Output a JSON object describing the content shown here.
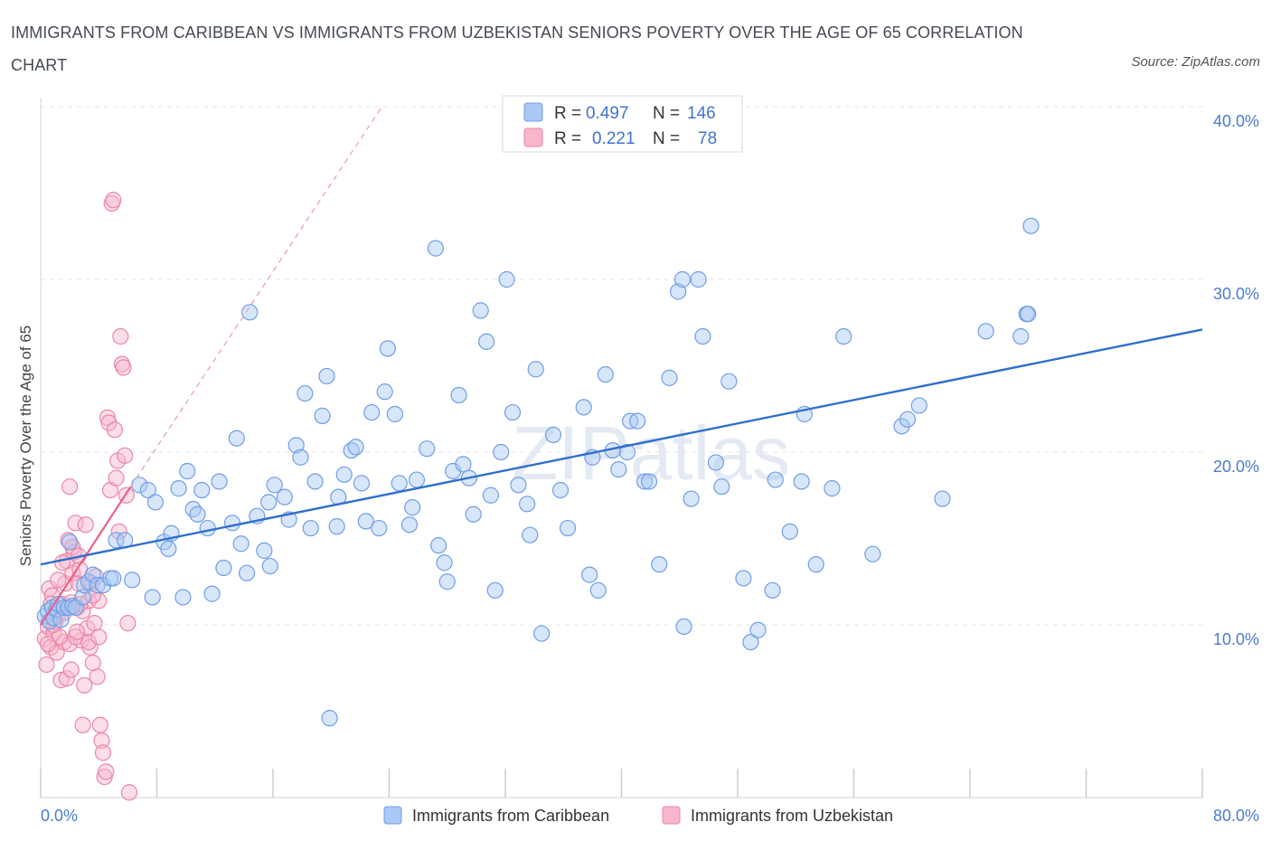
{
  "title": "IMMIGRANTS FROM CARIBBEAN VS IMMIGRANTS FROM UZBEKISTAN SENIORS POVERTY OVER THE AGE OF 65 CORRELATION CHART",
  "source": "Source: ZipAtlas.com",
  "watermark": "ZIPatlas",
  "colors": {
    "blue_fill": "#a9c8f5",
    "blue_stroke": "#6f9ee6",
    "blue_line": "#2f6fce",
    "pink_fill": "#f7b6cb",
    "pink_stroke": "#ec86a6",
    "pink_line": "#e8608b",
    "tick_text": "#4a7bd0",
    "grid": "#e3e6ea"
  },
  "stats": [
    {
      "r_label": "R =",
      "r": "0.497",
      "n_label": "N =",
      "n": "146"
    },
    {
      "r_label": "R =",
      "r": "0.221",
      "n_label": "N =",
      "n": "78"
    }
  ],
  "chart_data": {
    "type": "scatter",
    "title": "IMMIGRANTS FROM CARIBBEAN VS IMMIGRANTS FROM UZBEKISTAN SENIORS POVERTY OVER THE AGE OF 65 CORRELATION CHART",
    "xlabel": "",
    "ylabel": "Seniors Poverty Over the Age of 65",
    "xlim": [
      0,
      80
    ],
    "ylim": [
      0,
      40
    ],
    "x_tick_labels": [
      "0.0%",
      "80.0%"
    ],
    "y_ticks": [
      10,
      20,
      30,
      40
    ],
    "y_tick_labels": [
      "10.0%",
      "20.0%",
      "30.0%",
      "40.0%"
    ],
    "grid": true,
    "legend_position": "bottom-center",
    "series": [
      {
        "name": "Immigrants from Caribbean",
        "color": "blue",
        "r": 0.497,
        "n": 146,
        "trend": {
          "x0": 0,
          "y0": 13.5,
          "x1": 80,
          "y1": 27.1
        },
        "points": [
          [
            0.3,
            10.5
          ],
          [
            0.5,
            10.8
          ],
          [
            0.6,
            10.2
          ],
          [
            0.8,
            11.0
          ],
          [
            0.9,
            10.4
          ],
          [
            1.1,
            10.9
          ],
          [
            1.2,
            11.2
          ],
          [
            1.4,
            10.3
          ],
          [
            1.6,
            11.0
          ],
          [
            1.9,
            11.0
          ],
          [
            2.2,
            11.1
          ],
          [
            2.4,
            11.0
          ],
          [
            2.0,
            14.8
          ],
          [
            2.9,
            11.6
          ],
          [
            3.0,
            12.3
          ],
          [
            3.3,
            12.5
          ],
          [
            3.6,
            12.9
          ],
          [
            3.9,
            12.3
          ],
          [
            4.3,
            12.3
          ],
          [
            4.8,
            12.7
          ],
          [
            5.0,
            12.7
          ],
          [
            5.2,
            14.9
          ],
          [
            5.8,
            14.9
          ],
          [
            6.3,
            12.6
          ],
          [
            6.8,
            18.1
          ],
          [
            7.4,
            17.8
          ],
          [
            7.7,
            11.6
          ],
          [
            7.9,
            17.1
          ],
          [
            8.5,
            14.8
          ],
          [
            8.8,
            14.4
          ],
          [
            9.0,
            15.3
          ],
          [
            9.5,
            17.9
          ],
          [
            9.8,
            11.6
          ],
          [
            10.1,
            18.9
          ],
          [
            10.5,
            16.7
          ],
          [
            10.8,
            16.4
          ],
          [
            11.1,
            17.8
          ],
          [
            11.5,
            15.6
          ],
          [
            11.8,
            11.8
          ],
          [
            12.3,
            18.3
          ],
          [
            12.6,
            13.3
          ],
          [
            13.2,
            15.9
          ],
          [
            13.5,
            20.8
          ],
          [
            13.8,
            14.7
          ],
          [
            14.2,
            13.0
          ],
          [
            14.4,
            28.1
          ],
          [
            14.9,
            16.3
          ],
          [
            15.4,
            14.3
          ],
          [
            15.7,
            17.1
          ],
          [
            15.8,
            13.4
          ],
          [
            16.1,
            18.1
          ],
          [
            16.8,
            17.4
          ],
          [
            17.1,
            16.1
          ],
          [
            17.6,
            20.4
          ],
          [
            17.9,
            19.7
          ],
          [
            18.2,
            23.4
          ],
          [
            18.6,
            15.6
          ],
          [
            18.9,
            18.3
          ],
          [
            19.4,
            22.1
          ],
          [
            19.7,
            24.4
          ],
          [
            19.9,
            4.6
          ],
          [
            20.5,
            17.4
          ],
          [
            20.4,
            15.7
          ],
          [
            20.9,
            18.7
          ],
          [
            21.4,
            20.1
          ],
          [
            21.7,
            20.3
          ],
          [
            22.1,
            18.2
          ],
          [
            22.4,
            16.0
          ],
          [
            22.8,
            22.3
          ],
          [
            23.3,
            15.6
          ],
          [
            23.7,
            23.5
          ],
          [
            23.9,
            26.0
          ],
          [
            24.4,
            22.2
          ],
          [
            24.7,
            18.2
          ],
          [
            25.4,
            15.8
          ],
          [
            25.6,
            16.8
          ],
          [
            25.9,
            18.4
          ],
          [
            26.6,
            20.2
          ],
          [
            27.2,
            31.8
          ],
          [
            27.4,
            14.6
          ],
          [
            27.8,
            13.6
          ],
          [
            28.0,
            12.5
          ],
          [
            28.4,
            18.9
          ],
          [
            28.8,
            23.3
          ],
          [
            29.1,
            19.3
          ],
          [
            29.5,
            18.5
          ],
          [
            29.8,
            16.4
          ],
          [
            30.3,
            28.2
          ],
          [
            30.7,
            26.4
          ],
          [
            31.0,
            17.5
          ],
          [
            31.3,
            12.0
          ],
          [
            31.7,
            20.0
          ],
          [
            32.1,
            30.0
          ],
          [
            32.5,
            22.3
          ],
          [
            32.9,
            18.1
          ],
          [
            33.5,
            17.0
          ],
          [
            33.7,
            15.2
          ],
          [
            34.1,
            24.8
          ],
          [
            34.5,
            9.5
          ],
          [
            35.3,
            21.0
          ],
          [
            35.8,
            17.8
          ],
          [
            36.3,
            15.6
          ],
          [
            37.4,
            22.6
          ],
          [
            37.8,
            12.9
          ],
          [
            38.0,
            19.7
          ],
          [
            38.4,
            12.0
          ],
          [
            38.9,
            24.5
          ],
          [
            39.4,
            20.1
          ],
          [
            39.8,
            19.0
          ],
          [
            40.4,
            20.0
          ],
          [
            40.6,
            21.8
          ],
          [
            41.1,
            21.8
          ],
          [
            41.6,
            18.3
          ],
          [
            41.9,
            18.3
          ],
          [
            42.6,
            13.5
          ],
          [
            43.3,
            24.3
          ],
          [
            43.9,
            29.3
          ],
          [
            44.2,
            30.0
          ],
          [
            44.3,
            9.9
          ],
          [
            44.8,
            17.3
          ],
          [
            45.3,
            30.0
          ],
          [
            45.6,
            26.7
          ],
          [
            46.5,
            19.4
          ],
          [
            46.9,
            18.0
          ],
          [
            47.4,
            24.1
          ],
          [
            48.4,
            12.7
          ],
          [
            48.9,
            9.0
          ],
          [
            49.4,
            9.7
          ],
          [
            50.4,
            12.0
          ],
          [
            50.6,
            18.4
          ],
          [
            51.6,
            15.4
          ],
          [
            52.4,
            18.3
          ],
          [
            52.6,
            22.2
          ],
          [
            53.4,
            13.5
          ],
          [
            54.5,
            17.9
          ],
          [
            55.3,
            26.7
          ],
          [
            57.3,
            14.1
          ],
          [
            59.3,
            21.5
          ],
          [
            59.7,
            21.9
          ],
          [
            60.5,
            22.7
          ],
          [
            62.1,
            17.3
          ],
          [
            65.1,
            27.0
          ],
          [
            67.5,
            26.7
          ],
          [
            67.9,
            28.0
          ],
          [
            68.0,
            28.0
          ],
          [
            68.2,
            33.1
          ]
        ]
      },
      {
        "name": "Immigrants from Uzbekistan",
        "color": "pink",
        "r": 0.221,
        "n": 78,
        "trend": {
          "x0": 0,
          "y0": 10.0,
          "x1": 6.2,
          "y1": 18.0
        },
        "trend_extended": {
          "x0": 6.2,
          "y0": 18.0,
          "x1": 23.5,
          "y1": 40.0
        },
        "points": [
          [
            0.3,
            9.2
          ],
          [
            0.4,
            7.7
          ],
          [
            0.5,
            9.9
          ],
          [
            0.6,
            12.1
          ],
          [
            0.7,
            8.7
          ],
          [
            0.8,
            11.7
          ],
          [
            0.9,
            9.5
          ],
          [
            1.0,
            10.2
          ],
          [
            1.1,
            8.4
          ],
          [
            1.2,
            10.6
          ],
          [
            1.4,
            6.8
          ],
          [
            1.5,
            11.2
          ],
          [
            1.6,
            9.0
          ],
          [
            1.7,
            12.4
          ],
          [
            1.8,
            13.7
          ],
          [
            1.9,
            14.9
          ],
          [
            2.0,
            8.9
          ],
          [
            2.1,
            11.3
          ],
          [
            2.2,
            13.0
          ],
          [
            2.3,
            14.2
          ],
          [
            2.4,
            15.9
          ],
          [
            2.5,
            11.0
          ],
          [
            2.6,
            12.4
          ],
          [
            2.7,
            13.2
          ],
          [
            2.8,
            9.1
          ],
          [
            2.9,
            10.8
          ],
          [
            3.0,
            6.5
          ],
          [
            3.1,
            15.8
          ],
          [
            3.2,
            9.8
          ],
          [
            3.3,
            11.4
          ],
          [
            3.4,
            8.7
          ],
          [
            3.6,
            7.8
          ],
          [
            3.7,
            10.1
          ],
          [
            3.8,
            12.8
          ],
          [
            3.9,
            7.0
          ],
          [
            4.0,
            11.4
          ],
          [
            4.1,
            4.2
          ],
          [
            4.2,
            3.3
          ],
          [
            4.3,
            2.6
          ],
          [
            4.4,
            1.2
          ],
          [
            4.5,
            1.5
          ],
          [
            4.6,
            22.0
          ],
          [
            4.7,
            21.7
          ],
          [
            4.8,
            17.8
          ],
          [
            4.9,
            34.4
          ],
          [
            5.0,
            34.6
          ],
          [
            5.1,
            21.3
          ],
          [
            5.2,
            18.5
          ],
          [
            5.3,
            19.5
          ],
          [
            5.4,
            15.4
          ],
          [
            5.5,
            26.7
          ],
          [
            5.6,
            25.1
          ],
          [
            5.7,
            24.9
          ],
          [
            5.8,
            19.8
          ],
          [
            5.9,
            17.5
          ],
          [
            6.0,
            10.1
          ],
          [
            6.1,
            0.3
          ],
          [
            2.0,
            18.0
          ],
          [
            2.2,
            14.5
          ],
          [
            2.6,
            14.0
          ],
          [
            1.3,
            9.3
          ],
          [
            0.9,
            10.0
          ],
          [
            1.6,
            10.7
          ],
          [
            2.4,
            9.3
          ],
          [
            3.5,
            12.4
          ],
          [
            0.5,
            8.9
          ],
          [
            1.8,
            6.9
          ],
          [
            2.9,
            4.2
          ],
          [
            3.3,
            9.0
          ],
          [
            4.0,
            9.3
          ],
          [
            1.2,
            12.6
          ],
          [
            2.7,
            11.2
          ],
          [
            3.6,
            11.7
          ],
          [
            0.7,
            11.2
          ],
          [
            1.5,
            13.6
          ],
          [
            2.1,
            7.4
          ],
          [
            2.5,
            9.6
          ],
          [
            1.0,
            10.8
          ]
        ]
      }
    ]
  },
  "legend": [
    {
      "label": "Immigrants from Caribbean"
    },
    {
      "label": "Immigrants from Uzbekistan"
    }
  ]
}
